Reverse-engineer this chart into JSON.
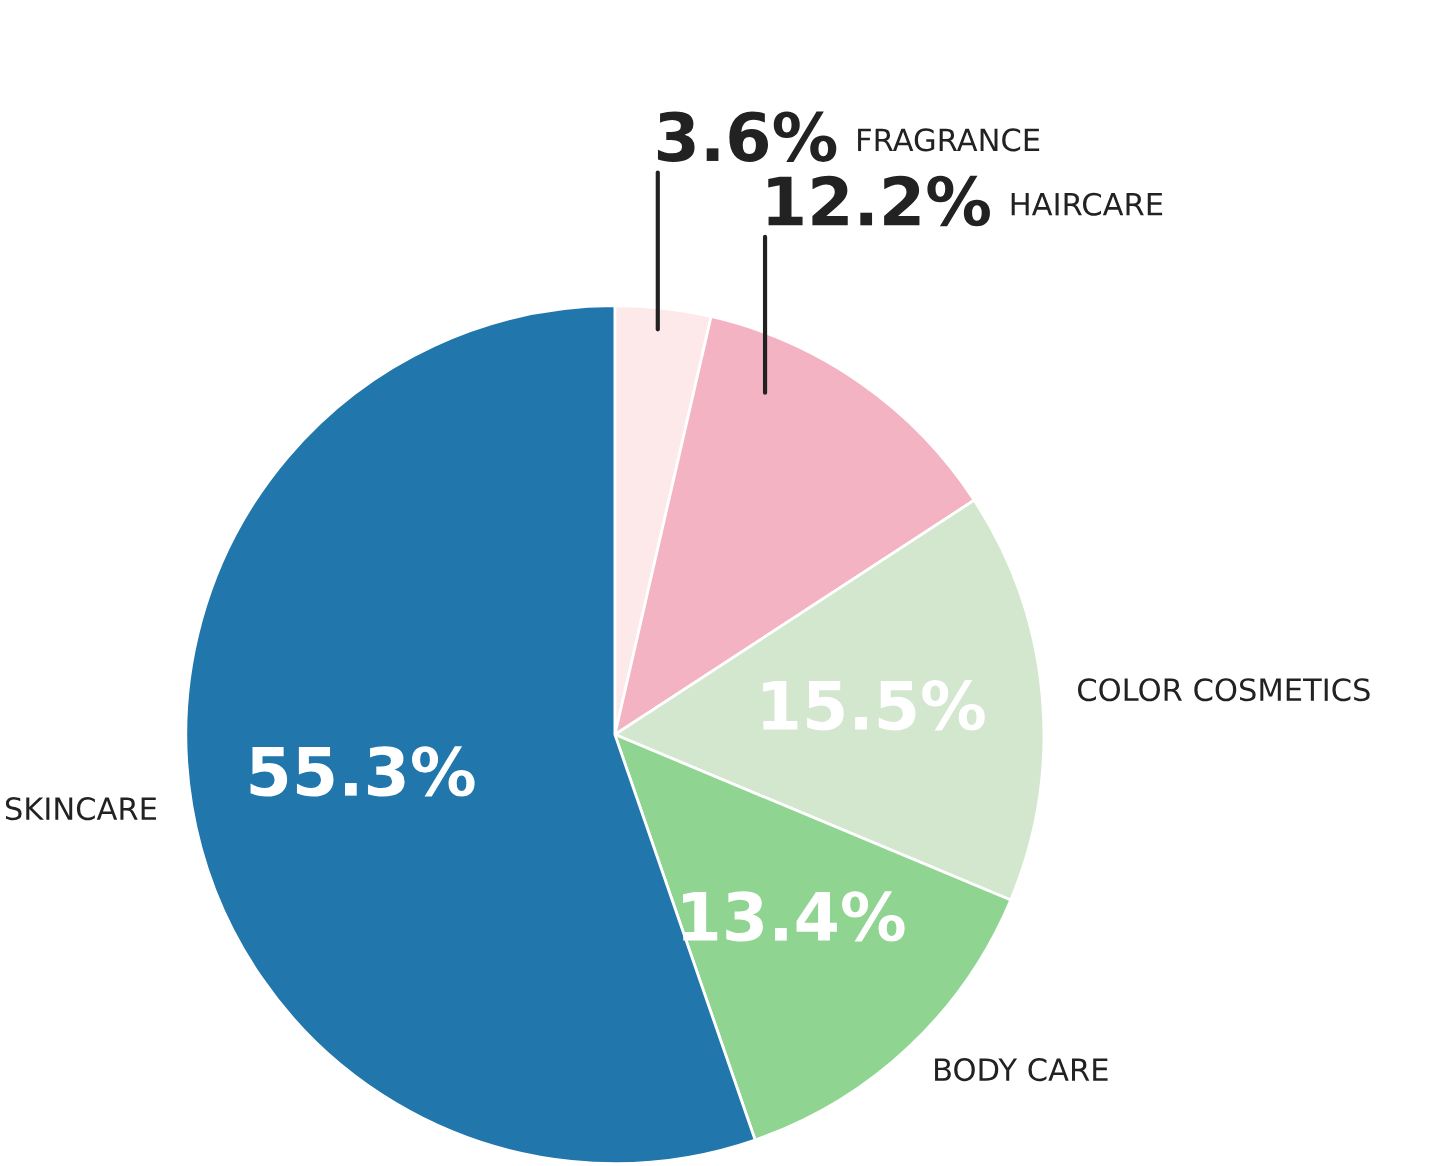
{
  "chart_data": {
    "type": "pie",
    "categories": [
      "FRAGRANCE",
      "HAIRCARE",
      "COLOR COSMETICS",
      "BODY CARE",
      "SKINCARE"
    ],
    "values": [
      3.6,
      12.2,
      15.5,
      13.4,
      55.3
    ],
    "value_labels": [
      "3.6%",
      "12.2%",
      "15.5%",
      "13.4%",
      "55.3%"
    ],
    "colors": [
      "#fde8ea",
      "#f4b3c2",
      "#d3e7cf",
      "#8fd491",
      "#2176ab"
    ]
  }
}
